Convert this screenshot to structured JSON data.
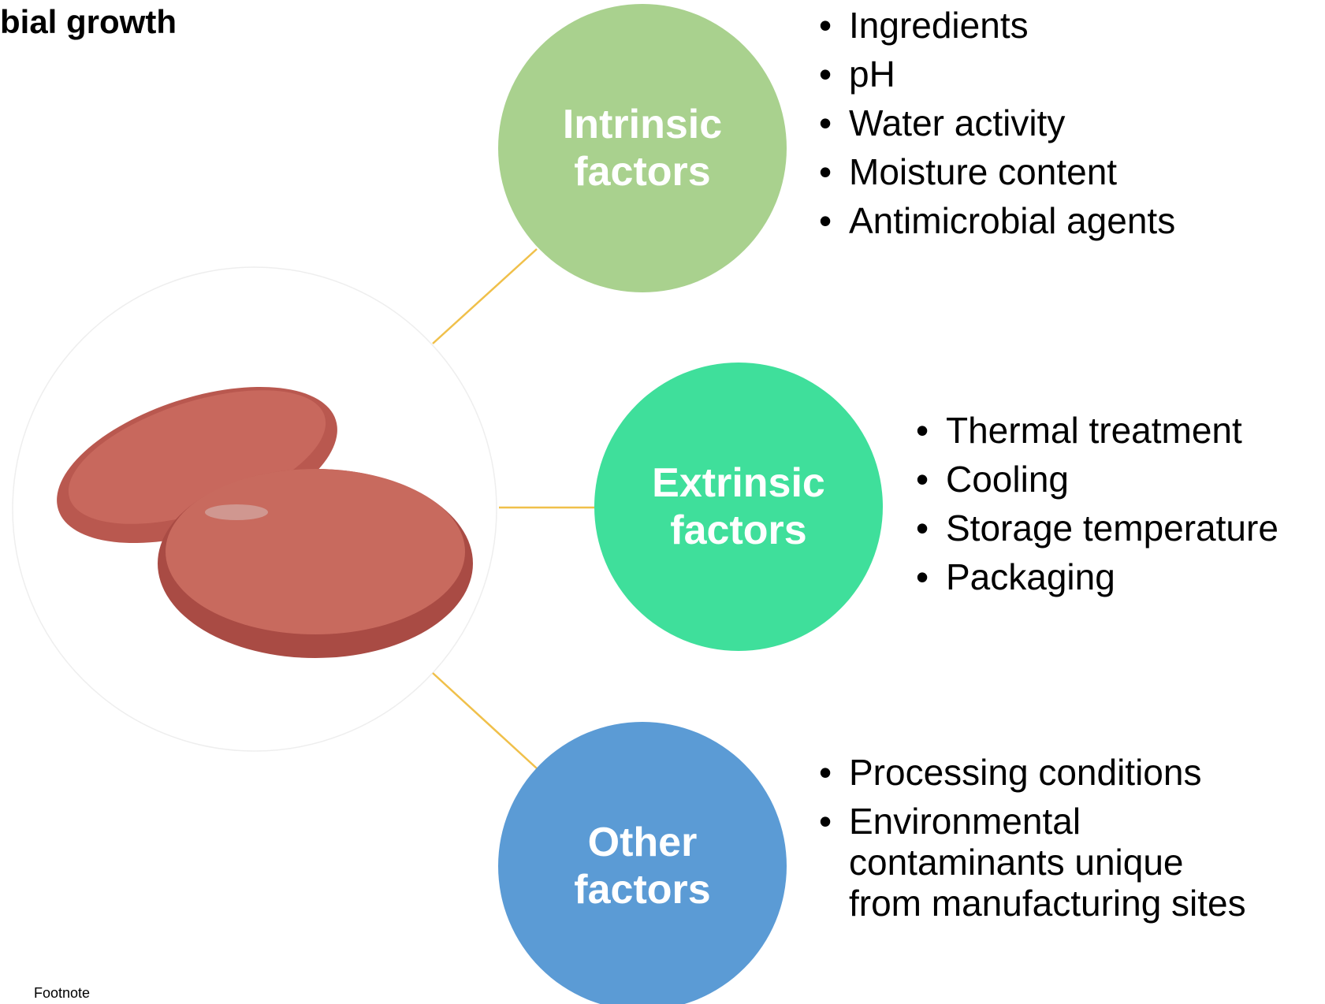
{
  "header": {
    "title": "bial growth"
  },
  "factors": [
    {
      "label": "Intrinsic factors",
      "color": "#a9d18e",
      "items": [
        "Ingredients",
        "pH",
        "Water activity",
        "Moisture content",
        "Antimicrobial agents"
      ]
    },
    {
      "label": "Extrinsic factors",
      "color": "#3fdf9b",
      "items": [
        "Thermal treatment",
        "Cooling",
        "Storage temperature",
        "Packaging"
      ]
    },
    {
      "label": "Other factors",
      "color": "#5b9bd5",
      "items": [
        "Processing conditions",
        "Environmental contaminants unique from manufacturing sites"
      ]
    }
  ],
  "footnote": "Footnote"
}
